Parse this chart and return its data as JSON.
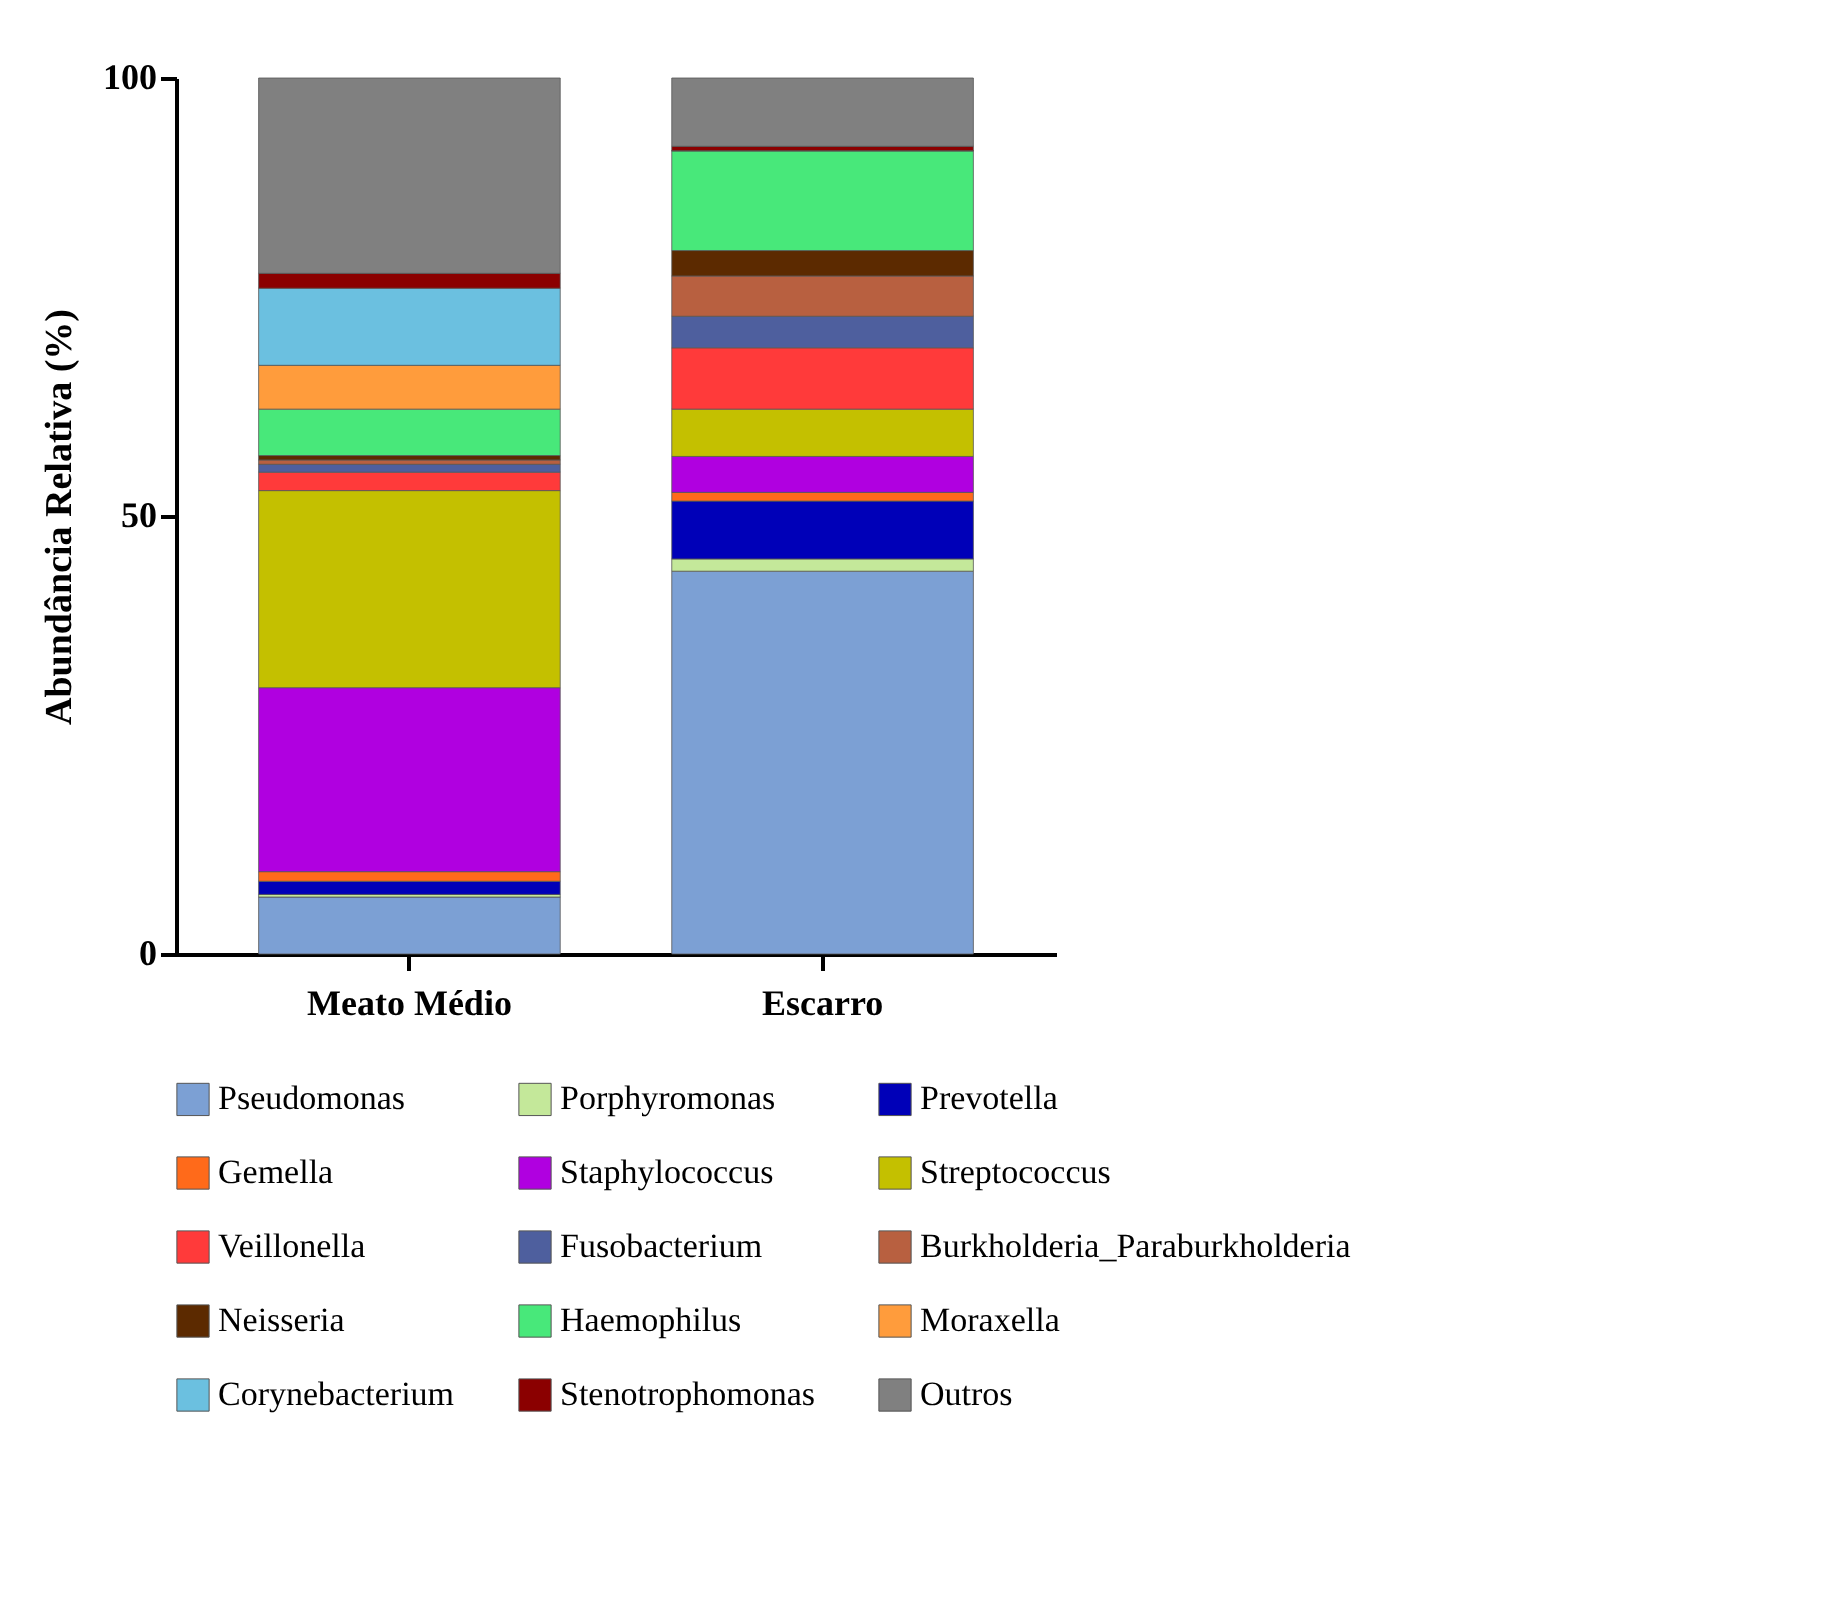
{
  "chart_data": {
    "type": "bar",
    "ylabel": "Abundância Relativa (%)",
    "categories": [
      "Meato Médio",
      "Escarro"
    ],
    "stacked": true,
    "ylim": [
      0,
      100
    ],
    "yticks": [
      0,
      50,
      100
    ],
    "grid": false,
    "legend": "bottom",
    "series": [
      {
        "name": "Pseudomonas",
        "color": "#7ca0d4",
        "values": [
          6.5,
          43.7
        ]
      },
      {
        "name": "Porphyromonas",
        "color": "#c4e89a",
        "values": [
          0.3,
          1.4
        ]
      },
      {
        "name": "Prevotella",
        "color": "#0000b8",
        "values": [
          1.5,
          6.6
        ]
      },
      {
        "name": "Gemella",
        "color": "#ff6a1a",
        "values": [
          1.1,
          1.0
        ]
      },
      {
        "name": "Staphylococcus",
        "color": "#b000e0",
        "values": [
          21.0,
          4.1
        ]
      },
      {
        "name": "Streptococcus",
        "color": "#c4c000",
        "values": [
          22.5,
          5.4
        ]
      },
      {
        "name": "Veillonella",
        "color": "#ff3a3a",
        "values": [
          2.1,
          7.0
        ]
      },
      {
        "name": "Fusobacterium",
        "color": "#4e5f9e",
        "values": [
          0.9,
          3.6
        ]
      },
      {
        "name": "Burkholderia_Paraburkholderia",
        "color": "#b86040",
        "values": [
          0.5,
          4.6
        ]
      },
      {
        "name": "Neisseria",
        "color": "#5c2a00",
        "values": [
          0.5,
          2.9
        ]
      },
      {
        "name": "Haemophilus",
        "color": "#48e87a",
        "values": [
          5.3,
          11.4
        ]
      },
      {
        "name": "Moraxella",
        "color": "#ff9c3c",
        "values": [
          5.0,
          0
        ]
      },
      {
        "name": "Corynebacterium",
        "color": "#6bc0e0",
        "values": [
          8.8,
          0
        ]
      },
      {
        "name": "Stenotrophomonas",
        "color": "#8b0000",
        "values": [
          1.7,
          0.5
        ]
      },
      {
        "name": "Outros",
        "color": "#808080",
        "values": [
          22.3,
          7.8
        ]
      }
    ]
  }
}
